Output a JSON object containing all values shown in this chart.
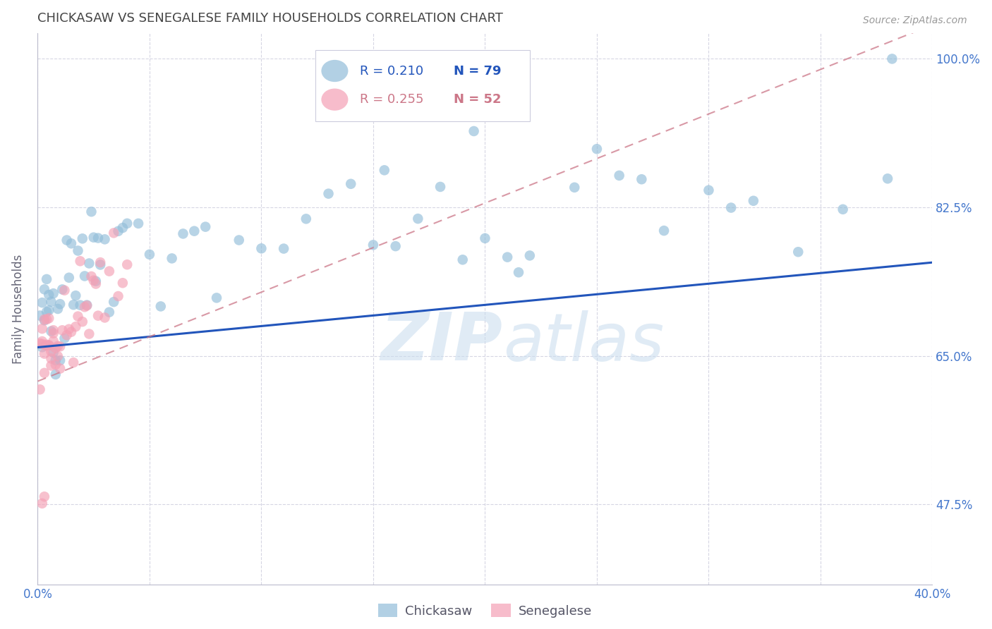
{
  "title": "CHICKASAW VS SENEGALESE FAMILY HOUSEHOLDS CORRELATION CHART",
  "source": "Source: ZipAtlas.com",
  "ylabel": "Family Households",
  "watermark": "ZIPatlas",
  "legend_r_chickasaw": "0.210",
  "legend_n_chickasaw": "79",
  "legend_r_senegalese": "0.255",
  "legend_n_senegalese": "52",
  "xmin": 0.0,
  "xmax": 0.4,
  "ymin": 0.38,
  "ymax": 1.03,
  "yticks": [
    0.475,
    0.65,
    0.825,
    1.0
  ],
  "ytick_labels": [
    "47.5%",
    "65.0%",
    "82.5%",
    "100.0%"
  ],
  "xticks": [
    0.0,
    0.05,
    0.1,
    0.15,
    0.2,
    0.25,
    0.3,
    0.35,
    0.4
  ],
  "chickasaw_color": "#92BDD9",
  "senegalese_color": "#F4A0B5",
  "trendline_chickasaw_color": "#2255BB",
  "trendline_senegalese_color": "#CC7788",
  "axis_label_color": "#4477CC",
  "grid_color": "#CCCCDD",
  "title_color": "#444444",
  "chickasaw_x": [
    0.001,
    0.002,
    0.002,
    0.003,
    0.003,
    0.004,
    0.004,
    0.005,
    0.005,
    0.006,
    0.006,
    0.007,
    0.007,
    0.008,
    0.008,
    0.009,
    0.01,
    0.01,
    0.011,
    0.012,
    0.013,
    0.014,
    0.015,
    0.016,
    0.017,
    0.018,
    0.019,
    0.02,
    0.021,
    0.022,
    0.023,
    0.024,
    0.025,
    0.026,
    0.027,
    0.028,
    0.03,
    0.032,
    0.034,
    0.036,
    0.038,
    0.04,
    0.045,
    0.05,
    0.055,
    0.06,
    0.065,
    0.07,
    0.075,
    0.08,
    0.09,
    0.1,
    0.11,
    0.12,
    0.13,
    0.14,
    0.15,
    0.16,
    0.17,
    0.18,
    0.19,
    0.2,
    0.21,
    0.22,
    0.24,
    0.26,
    0.28,
    0.3,
    0.32,
    0.34,
    0.36,
    0.38,
    0.155,
    0.195,
    0.215,
    0.25,
    0.27,
    0.31,
    0.382
  ],
  "chickasaw_y": [
    0.68,
    0.665,
    0.69,
    0.675,
    0.7,
    0.71,
    0.685,
    0.695,
    0.72,
    0.66,
    0.73,
    0.67,
    0.715,
    0.695,
    0.705,
    0.725,
    0.68,
    0.7,
    0.76,
    0.72,
    0.735,
    0.75,
    0.78,
    0.76,
    0.74,
    0.77,
    0.75,
    0.775,
    0.765,
    0.72,
    0.78,
    0.755,
    0.79,
    0.775,
    0.76,
    0.8,
    0.78,
    0.77,
    0.76,
    0.79,
    0.775,
    0.8,
    0.81,
    0.78,
    0.76,
    0.79,
    0.81,
    0.76,
    0.79,
    0.78,
    0.775,
    0.79,
    0.8,
    0.79,
    0.805,
    0.82,
    0.81,
    0.79,
    0.8,
    0.815,
    0.78,
    0.795,
    0.805,
    0.81,
    0.82,
    0.815,
    0.8,
    0.81,
    0.82,
    0.795,
    0.81,
    0.805,
    0.87,
    0.86,
    0.84,
    0.865,
    0.855,
    0.835,
    1.0
  ],
  "senegalese_x": [
    0.001,
    0.001,
    0.002,
    0.002,
    0.002,
    0.003,
    0.003,
    0.003,
    0.004,
    0.004,
    0.004,
    0.005,
    0.005,
    0.005,
    0.006,
    0.006,
    0.006,
    0.007,
    0.007,
    0.007,
    0.008,
    0.008,
    0.009,
    0.009,
    0.01,
    0.01,
    0.011,
    0.012,
    0.013,
    0.014,
    0.015,
    0.016,
    0.017,
    0.018,
    0.019,
    0.02,
    0.021,
    0.022,
    0.023,
    0.024,
    0.025,
    0.026,
    0.027,
    0.028,
    0.03,
    0.032,
    0.034,
    0.036,
    0.038,
    0.04,
    0.002,
    0.003
  ],
  "senegalese_y": [
    0.66,
    0.67,
    0.655,
    0.645,
    0.68,
    0.65,
    0.665,
    0.67,
    0.655,
    0.675,
    0.68,
    0.66,
    0.67,
    0.68,
    0.655,
    0.665,
    0.675,
    0.66,
    0.67,
    0.68,
    0.665,
    0.675,
    0.66,
    0.67,
    0.655,
    0.665,
    0.67,
    0.68,
    0.67,
    0.675,
    0.68,
    0.69,
    0.685,
    0.695,
    0.7,
    0.695,
    0.7,
    0.71,
    0.705,
    0.715,
    0.72,
    0.715,
    0.72,
    0.725,
    0.73,
    0.735,
    0.74,
    0.745,
    0.75,
    0.755,
    0.475,
    0.48
  ],
  "trendline_chick_x0": 0.0,
  "trendline_chick_x1": 0.4,
  "trendline_chick_y0": 0.66,
  "trendline_chick_y1": 0.76,
  "trendline_sene_x0": 0.0,
  "trendline_sene_x1": 0.4,
  "trendline_sene_y0": 0.62,
  "trendline_sene_y1": 1.04
}
